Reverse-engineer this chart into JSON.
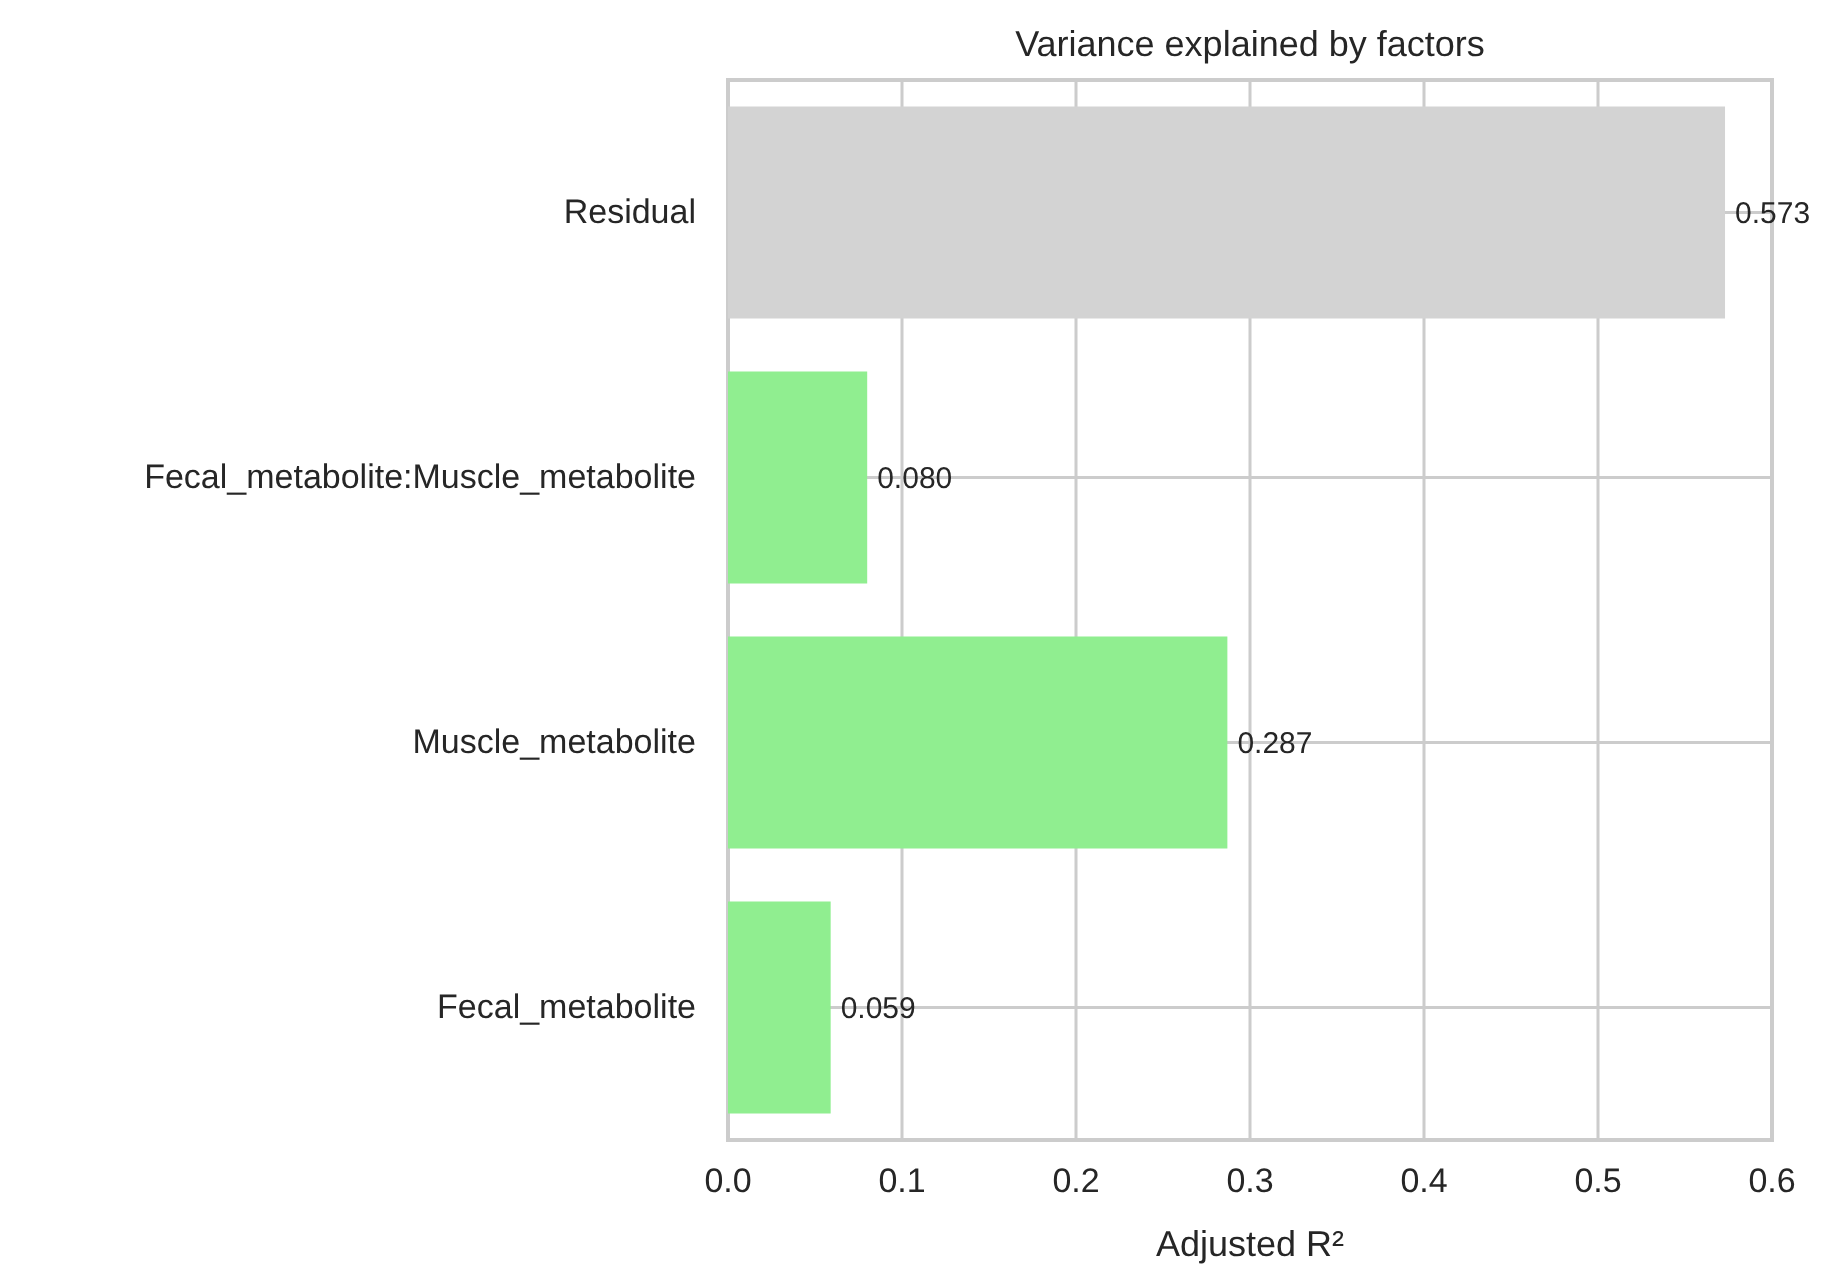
{
  "chart_data": {
    "type": "bar",
    "orientation": "horizontal",
    "title": "Variance explained by factors",
    "xlabel": "Adjusted R²",
    "categories": [
      "Residual",
      "Fecal_metabolite:Muscle_metabolite",
      "Muscle_metabolite",
      "Fecal_metabolite"
    ],
    "values": [
      0.573,
      0.08,
      0.287,
      0.059
    ],
    "colors": [
      "#d3d3d3",
      "#90ee90",
      "#90ee90",
      "#90ee90"
    ],
    "value_labels": [
      "0.573",
      "0.080",
      "0.287",
      "0.059"
    ],
    "xlim": [
      0,
      0.6
    ],
    "xticks": [
      {
        "value": 0,
        "label": "0.0"
      },
      0.1,
      0.2,
      0.3,
      0.4,
      0.5,
      0.6
    ],
    "grid": true
  }
}
